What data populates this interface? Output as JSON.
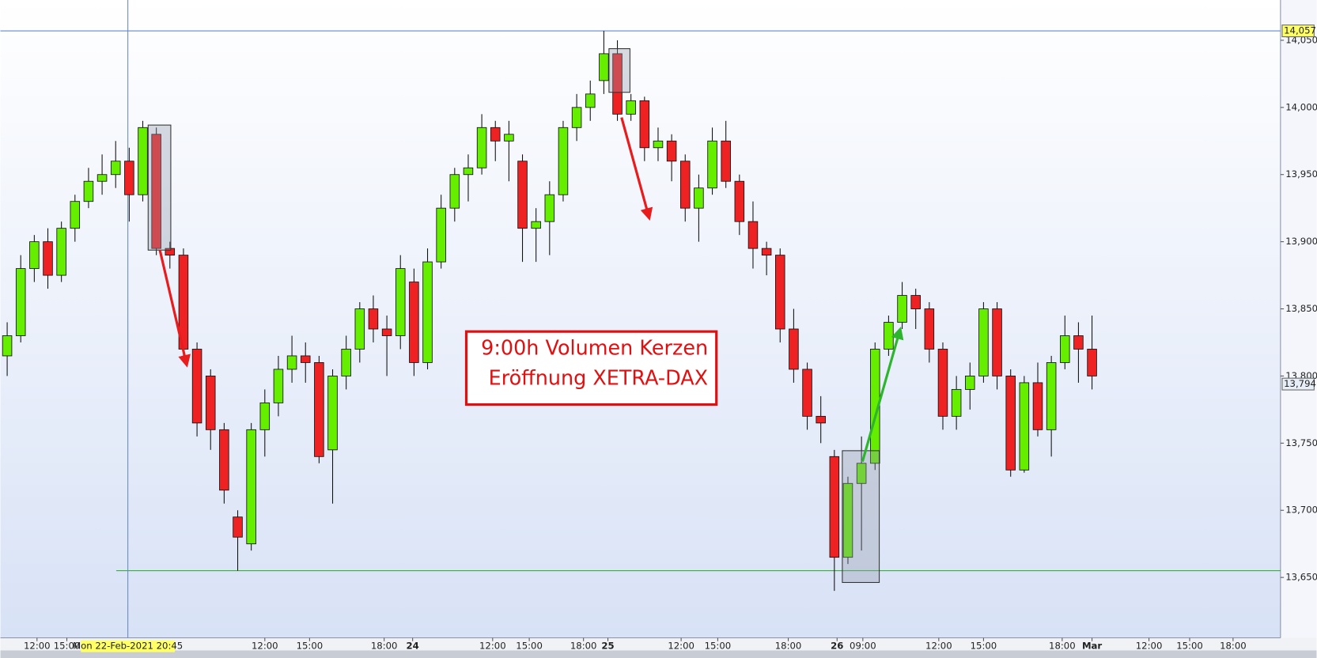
{
  "chart_data": {
    "type": "candlestick",
    "up_color": "#66ee00",
    "down_color": "#ee2222",
    "grid": false,
    "candles": {
      "open": [
        13815,
        13830,
        13880,
        13900,
        13875,
        13910,
        13930,
        13945,
        13950,
        13960,
        13935,
        13980,
        13895,
        13890,
        13820,
        13800,
        13760,
        13695,
        13675,
        13760,
        13780,
        13805,
        13815,
        13810,
        13745,
        13800,
        13820,
        13850,
        13835,
        13830,
        13870,
        13810,
        13885,
        13925,
        13950,
        13955,
        13985,
        13975,
        13960,
        13910,
        13915,
        13935,
        13985,
        14000,
        14020,
        14040,
        13995,
        14005,
        13970,
        13975,
        13960,
        13925,
        13940,
        13975,
        13945,
        13915,
        13895,
        13890,
        13835,
        13805,
        13770,
        13740,
        13665,
        13720,
        13735,
        13820,
        13840,
        13860,
        13850,
        13820,
        13770,
        13790,
        13800,
        13850,
        13800,
        13730,
        13795,
        13760,
        13810,
        13830,
        13820
      ],
      "high": [
        13840,
        13890,
        13905,
        13910,
        13915,
        13935,
        13955,
        13965,
        13975,
        13970,
        13990,
        13985,
        13900,
        13895,
        13825,
        13805,
        13765,
        13700,
        13765,
        13790,
        13815,
        13830,
        13825,
        13815,
        13805,
        13830,
        13855,
        13860,
        13845,
        13890,
        13880,
        13895,
        13935,
        13955,
        13965,
        13995,
        13990,
        13990,
        13965,
        13925,
        13945,
        13990,
        14010,
        14020,
        14057,
        14050,
        14010,
        14008,
        13985,
        13980,
        13965,
        13950,
        13985,
        13990,
        13950,
        13930,
        13900,
        13895,
        13850,
        13810,
        13785,
        13745,
        13725,
        13755,
        13825,
        13845,
        13870,
        13865,
        13855,
        13825,
        13800,
        13810,
        13855,
        13855,
        13805,
        13800,
        13810,
        13815,
        13845,
        13840,
        13845
      ],
      "low": [
        13800,
        13825,
        13870,
        13865,
        13870,
        13900,
        13925,
        13935,
        13940,
        13915,
        13930,
        13890,
        13880,
        13810,
        13755,
        13745,
        13705,
        13655,
        13670,
        13740,
        13770,
        13795,
        13795,
        13735,
        13705,
        13790,
        13810,
        13825,
        13800,
        13820,
        13800,
        13805,
        13880,
        13915,
        13930,
        13950,
        13960,
        13945,
        13885,
        13885,
        13890,
        13930,
        13975,
        13990,
        14010,
        13990,
        13990,
        13960,
        13960,
        13945,
        13915,
        13900,
        13935,
        13940,
        13905,
        13880,
        13875,
        13825,
        13795,
        13760,
        13750,
        13640,
        13660,
        13670,
        13730,
        13815,
        13835,
        13835,
        13810,
        13760,
        13760,
        13775,
        13795,
        13790,
        13725,
        13728,
        13755,
        13740,
        13805,
        13795,
        13790
      ],
      "close": [
        13830,
        13880,
        13900,
        13875,
        13910,
        13930,
        13945,
        13950,
        13960,
        13935,
        13985,
        13895,
        13890,
        13820,
        13765,
        13760,
        13715,
        13680,
        13760,
        13780,
        13805,
        13815,
        13810,
        13740,
        13800,
        13820,
        13850,
        13835,
        13830,
        13880,
        13810,
        13885,
        13925,
        13950,
        13955,
        13985,
        13975,
        13980,
        13910,
        13915,
        13935,
        13985,
        14000,
        14010,
        14040,
        13995,
        14005,
        13970,
        13975,
        13960,
        13925,
        13940,
        13975,
        13945,
        13915,
        13895,
        13890,
        13835,
        13805,
        13770,
        13765,
        13665,
        13720,
        13735,
        13820,
        13840,
        13860,
        13850,
        13820,
        13770,
        13790,
        13800,
        13850,
        13800,
        13730,
        13795,
        13760,
        13810,
        13830,
        13820,
        13800
      ]
    },
    "xlim": [
      -0.5,
      93.9
    ],
    "xticks": [
      {
        "value": 2.2,
        "label": "12:00"
      },
      {
        "value": 4.4,
        "label": "15:00"
      },
      {
        "value": 19.0,
        "label": "12:00"
      },
      {
        "value": 22.3,
        "label": "15:00"
      },
      {
        "value": 27.8,
        "label": "18:00"
      },
      {
        "value": 29.9,
        "label": "24"
      },
      {
        "value": 35.8,
        "label": "12:00"
      },
      {
        "value": 38.5,
        "label": "15:00"
      },
      {
        "value": 42.5,
        "label": "18:00"
      },
      {
        "value": 44.3,
        "label": "25"
      },
      {
        "value": 49.7,
        "label": "12:00"
      },
      {
        "value": 52.4,
        "label": "15:00"
      },
      {
        "value": 57.6,
        "label": "18:00"
      },
      {
        "value": 61.2,
        "label": "26"
      },
      {
        "value": 63.1,
        "label": "09:00"
      },
      {
        "value": 68.7,
        "label": "12:00"
      },
      {
        "value": 72,
        "label": "15:00"
      },
      {
        "value": 77.8,
        "label": "18:00"
      },
      {
        "value": 80,
        "label": "Mar"
      },
      {
        "value": 84.2,
        "label": "12:00"
      },
      {
        "value": 87.2,
        "label": "15:00"
      },
      {
        "value": 90.4,
        "label": "18:00"
      }
    ],
    "ylim": [
      13605,
      14080
    ],
    "yticks": [
      {
        "value": 13650,
        "label": "13,650"
      },
      {
        "value": 13700,
        "label": "13,700"
      },
      {
        "value": 13750,
        "label": "13,750"
      },
      {
        "value": 13800,
        "label": "13,800"
      },
      {
        "value": 13850,
        "label": "13,850"
      },
      {
        "value": 13900,
        "label": "13,900"
      },
      {
        "value": 13950,
        "label": "13,950"
      },
      {
        "value": 14000,
        "label": "14,000"
      },
      {
        "value": 14050,
        "label": "14,050"
      }
    ],
    "crosshair": {
      "x": 8.9,
      "x_label": "Mon 22-Feb-2021 20:45",
      "y": 14057,
      "y_label": "14,057"
    },
    "last_price": {
      "value": 13794,
      "label": "13,794"
    },
    "support_line": 13655,
    "annotation": [
      "9:00h Volumen Kerzen",
      "Eröffnung XETRA-DAX"
    ]
  }
}
